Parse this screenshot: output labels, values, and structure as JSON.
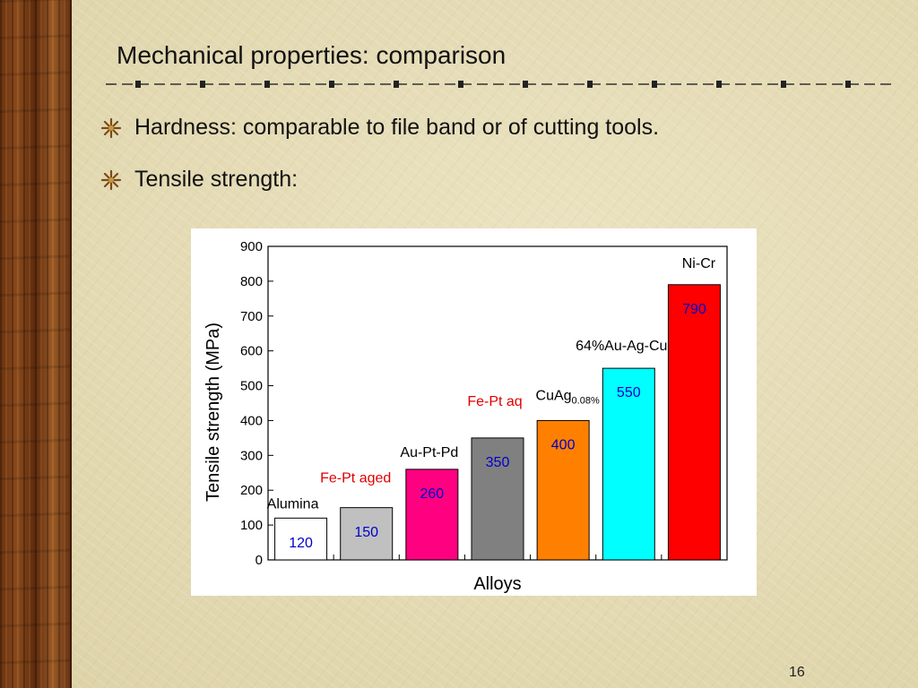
{
  "slide": {
    "title": "Mechanical properties: comparison",
    "bullets": [
      "Hardness: comparable to file band or of cutting tools.",
      "Tensile strength:"
    ],
    "page_number": "16"
  },
  "chart_data": {
    "type": "bar",
    "categories": [
      "Alumina",
      "Fe-Pt aged",
      "Au-Pt-Pd",
      "Fe-Pt aq",
      "CuAg",
      "64%Au-Ag-Cu",
      "Ni-Cr"
    ],
    "category_subscripts": [
      "",
      "",
      "",
      "",
      "0.08%",
      "",
      ""
    ],
    "values": [
      120,
      150,
      260,
      350,
      400,
      550,
      790
    ],
    "value_labels": [
      "120",
      "150",
      "260",
      "350",
      "400",
      "550",
      "790"
    ],
    "bar_colors": [
      "#ffffff",
      "#c0c0c0",
      "#ff0080",
      "#808080",
      "#ff8000",
      "#00ffff",
      "#ff0000"
    ],
    "category_label_colors": [
      "#000000",
      "#e00000",
      "#000000",
      "#e00000",
      "#000000",
      "#000000",
      "#000000"
    ],
    "value_label_color": "#0000cc",
    "xlabel": "Alloys",
    "ylabel": "Tensile strength (MPa)",
    "ylim": [
      0,
      900
    ],
    "yticks": [
      0,
      100,
      200,
      300,
      400,
      500,
      600,
      700,
      800,
      900
    ],
    "grid": false,
    "legend": "none"
  }
}
